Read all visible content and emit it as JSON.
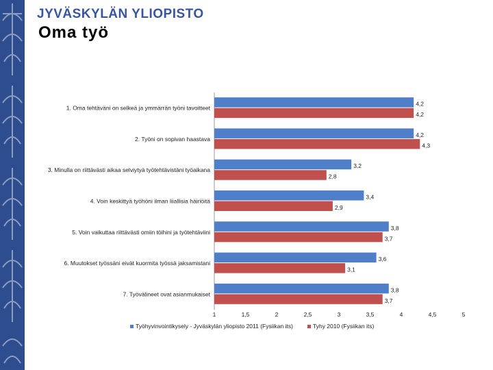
{
  "header": {
    "university": "JYVÄSKYLÄN YLIOPISTO",
    "title": "Oma työ"
  },
  "colors": {
    "sidebar": "#2e4d8f",
    "series_2011": "#4f7fc8",
    "series_2010": "#c0504d"
  },
  "icons": [
    "university-emblem-icon"
  ],
  "chart_data": {
    "type": "bar",
    "orientation": "horizontal",
    "title": "",
    "xlabel": "",
    "ylabel": "",
    "categories": [
      "1. Oma tehtäväni on selkeä ja ymmärrän työni tavoitteet",
      "2. Työni on sopivan haastava",
      "3. Minulla on riittävästi aikaa selviytyä työtehtävistäni työaikana",
      "4. Voin keskittyä työhöni ilman liiallisia häiriöitä",
      "5. Voin vaikuttaa riittävästi omiin töihini ja työtehtäviini",
      "6. Muutokset työssäni eivät kuormita työssä jaksamistani",
      "7. Työvälineet ovat asianmukaiset"
    ],
    "series": [
      {
        "name": "Työhyvinvointikysely - Jyväskylän yliopisto 2011 (Fysiikan its)",
        "values": [
          4.2,
          4.2,
          3.2,
          3.4,
          3.8,
          3.6,
          3.8
        ],
        "labels": [
          "4,2",
          "4,2",
          "3,2",
          "3,4",
          "3,8",
          "3,6",
          "3,8"
        ]
      },
      {
        "name": "Tyhy 2010 (Fysiikan its)",
        "values": [
          4.2,
          4.3,
          2.8,
          2.9,
          3.7,
          3.1,
          3.7
        ],
        "labels": [
          "4,2",
          "4,3",
          "2,8",
          "2,9",
          "3,7",
          "3,1",
          "3,7"
        ]
      }
    ],
    "xlim": [
      1,
      5
    ],
    "xticks": [
      "1",
      "1,5",
      "2",
      "2,5",
      "3",
      "3,5",
      "4",
      "4,5",
      "5"
    ],
    "grid": false,
    "legend_position": "bottom"
  }
}
